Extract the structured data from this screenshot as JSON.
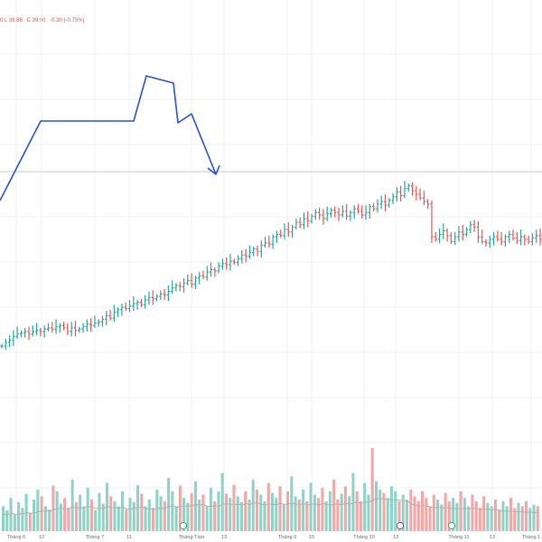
{
  "legend": {
    "low": "0  L 39.88",
    "close": "C 39.90",
    "change": "-0.30 (-0.75%)"
  },
  "colors": {
    "up": "#26a69a",
    "down": "#ef5350",
    "vol_up": "#8fd3c7",
    "vol_down": "#f2a7a6",
    "drawing": "#2850d8",
    "grid": "#eef0f3",
    "ref_line": "#c9c9c9",
    "ma_line": "#b0b0b0",
    "axis_text": "#6b6b6b"
  },
  "chart_data": {
    "type": "ohlc",
    "x_labels": [
      "Tháng 6",
      "12",
      "Tháng 7",
      "11",
      "Tháng Tám",
      "13",
      "Tháng 9",
      "15",
      "Tháng 10",
      "13",
      "Tháng 11",
      "13",
      "Tháng 1"
    ],
    "closes": [
      380,
      383,
      385,
      388,
      390,
      391,
      392,
      390,
      392,
      393,
      392,
      394,
      395,
      394,
      396,
      397,
      395,
      392,
      395,
      393,
      394,
      396,
      398,
      397,
      399,
      400,
      402,
      405,
      403,
      408,
      410,
      412,
      411,
      413,
      415,
      416,
      414,
      418,
      420,
      419,
      421,
      423,
      422,
      425,
      428,
      430,
      429,
      432,
      434,
      431,
      436,
      438,
      437,
      441,
      443,
      442,
      446,
      448,
      447,
      450,
      449,
      452,
      455,
      454,
      457,
      460,
      458,
      463,
      465,
      464,
      470,
      472,
      471,
      476,
      474,
      478,
      482,
      480,
      485,
      483,
      487,
      490,
      488,
      485,
      489,
      492,
      490,
      488,
      491,
      487,
      490,
      493,
      491,
      488,
      490,
      495,
      493,
      497,
      499,
      496,
      500,
      503,
      507,
      504,
      510,
      512,
      508,
      505,
      502,
      499,
      497,
      470,
      468,
      472,
      475,
      471,
      466,
      470,
      474,
      472,
      476,
      480,
      478,
      470,
      466,
      465,
      468,
      470,
      468,
      466,
      470,
      472,
      469,
      467,
      470,
      468,
      466,
      469,
      471,
      468
    ],
    "volumes": [
      30,
      25,
      40,
      20,
      35,
      28,
      45,
      22,
      38,
      50,
      42,
      30,
      26,
      55,
      48,
      33,
      40,
      28,
      62,
      35,
      44,
      30,
      52,
      38,
      25,
      46,
      33,
      58,
      42,
      36,
      30,
      48,
      26,
      40,
      35,
      55,
      45,
      30,
      38,
      28,
      50,
      42,
      36,
      64,
      48,
      30,
      55,
      40,
      34,
      46,
      60,
      38,
      44,
      30,
      52,
      36,
      48,
      70,
      45,
      40,
      56,
      42,
      35,
      48,
      38,
      62,
      50,
      44,
      36,
      58,
      46,
      40,
      54,
      32,
      48,
      66,
      42,
      38,
      50,
      36,
      58,
      44,
      40,
      52,
      36,
      48,
      62,
      38,
      45,
      54,
      42,
      70,
      48,
      36,
      58,
      44,
      100,
      60,
      50,
      46,
      40,
      54,
      48,
      36,
      44,
      38,
      50,
      42,
      36,
      48,
      40,
      30,
      44,
      38,
      32,
      46,
      36,
      40,
      34,
      48,
      40,
      30,
      44,
      36,
      28,
      42,
      34,
      30,
      38,
      26,
      36,
      30,
      40,
      28,
      34,
      30,
      36,
      28,
      32,
      30
    ]
  }
}
